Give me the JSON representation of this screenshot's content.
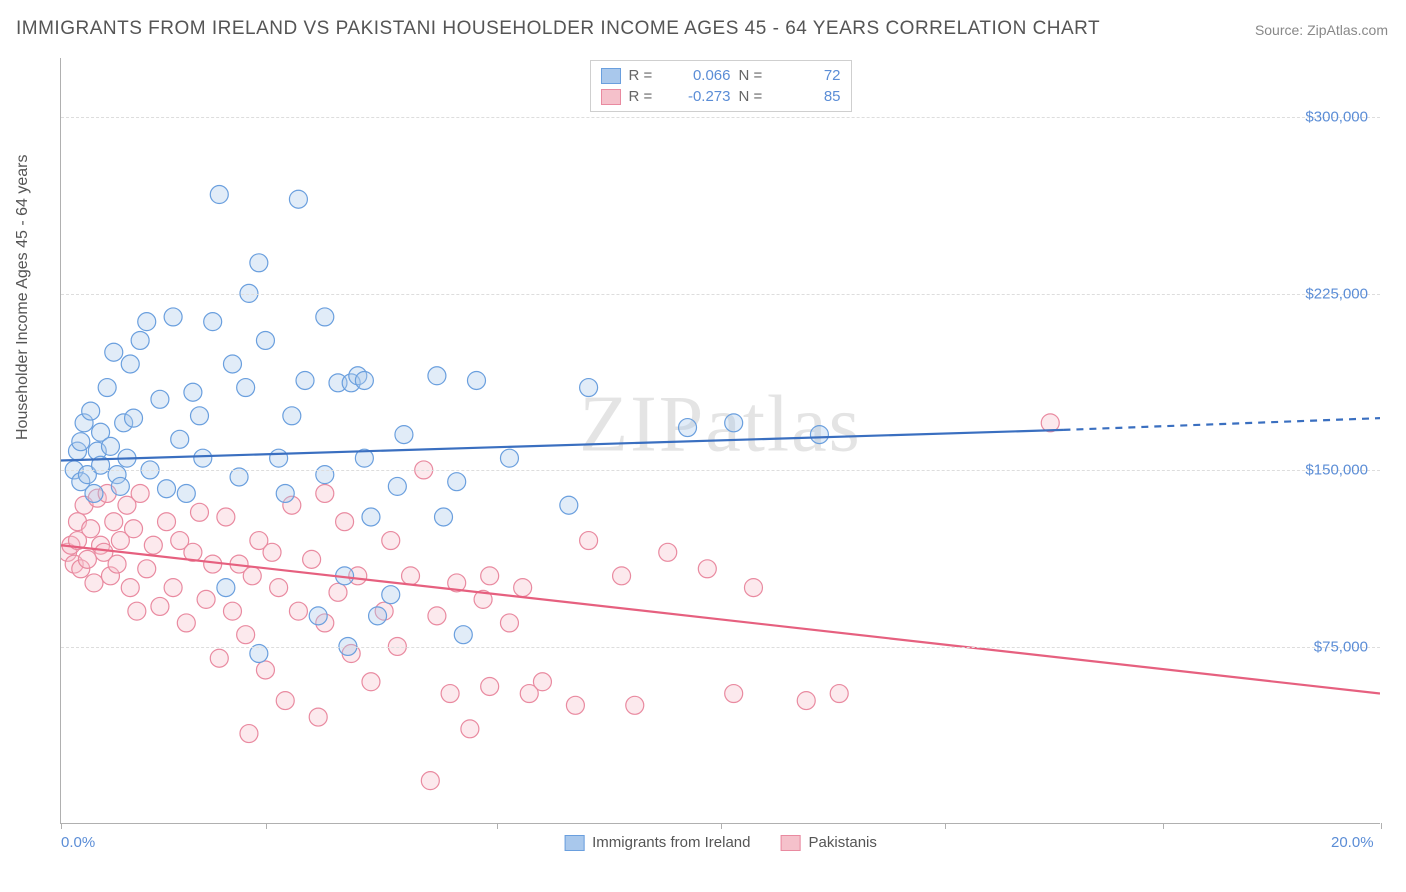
{
  "title": "IMMIGRANTS FROM IRELAND VS PAKISTANI HOUSEHOLDER INCOME AGES 45 - 64 YEARS CORRELATION CHART",
  "source": "Source: ZipAtlas.com",
  "watermark": "ZIPatlas",
  "chart": {
    "type": "scatter",
    "ylabel": "Householder Income Ages 45 - 64 years",
    "background_color": "#ffffff",
    "grid_color": "#dddddd",
    "axis_color": "#b0b0b0",
    "tick_label_color": "#5b8dd6",
    "label_color": "#555555",
    "xlim": [
      0,
      20
    ],
    "ylim": [
      0,
      325000
    ],
    "xtick_positions": [
      0,
      3.1,
      6.6,
      10.0,
      13.4,
      16.7,
      20
    ],
    "xtick_labels_visible": {
      "0": "0.0%",
      "20": "20.0%"
    },
    "ytick_positions": [
      75000,
      150000,
      225000,
      300000
    ],
    "ytick_labels": [
      "$75,000",
      "$150,000",
      "$225,000",
      "$300,000"
    ],
    "marker": {
      "radius": 9,
      "stroke_width": 1.2,
      "fill_opacity": 0.35
    },
    "series": [
      {
        "id": "ireland",
        "label": "Immigrants from Ireland",
        "color_fill": "#a9c8ec",
        "color_stroke": "#6a9fde",
        "trend_color": "#3a6fc0",
        "trend_line_width": 2.2,
        "correlation_R": "0.066",
        "N": "72",
        "trend": {
          "y_at_x0": 154000,
          "y_at_x_solid_end": 167000,
          "x_solid_end": 15.2,
          "y_at_x20": 172000,
          "dashed_after_solid": true
        },
        "points": [
          [
            0.2,
            150000
          ],
          [
            0.25,
            158000
          ],
          [
            0.3,
            145000
          ],
          [
            0.3,
            162000
          ],
          [
            0.35,
            170000
          ],
          [
            0.4,
            148000
          ],
          [
            0.45,
            175000
          ],
          [
            0.5,
            140000
          ],
          [
            0.55,
            158000
          ],
          [
            0.6,
            166000
          ],
          [
            0.6,
            152000
          ],
          [
            0.7,
            185000
          ],
          [
            0.75,
            160000
          ],
          [
            0.8,
            200000
          ],
          [
            0.85,
            148000
          ],
          [
            0.9,
            143000
          ],
          [
            0.95,
            170000
          ],
          [
            1.0,
            155000
          ],
          [
            1.05,
            195000
          ],
          [
            1.1,
            172000
          ],
          [
            1.2,
            205000
          ],
          [
            1.3,
            213000
          ],
          [
            1.35,
            150000
          ],
          [
            1.5,
            180000
          ],
          [
            1.6,
            142000
          ],
          [
            1.7,
            215000
          ],
          [
            1.8,
            163000
          ],
          [
            1.9,
            140000
          ],
          [
            2.0,
            183000
          ],
          [
            2.1,
            173000
          ],
          [
            2.15,
            155000
          ],
          [
            2.3,
            213000
          ],
          [
            2.4,
            267000
          ],
          [
            2.5,
            100000
          ],
          [
            2.6,
            195000
          ],
          [
            2.7,
            147000
          ],
          [
            2.8,
            185000
          ],
          [
            2.85,
            225000
          ],
          [
            3.0,
            72000
          ],
          [
            3.0,
            238000
          ],
          [
            3.1,
            205000
          ],
          [
            3.3,
            155000
          ],
          [
            3.4,
            140000
          ],
          [
            3.5,
            173000
          ],
          [
            3.6,
            265000
          ],
          [
            3.7,
            188000
          ],
          [
            3.9,
            88000
          ],
          [
            4.0,
            148000
          ],
          [
            4.0,
            215000
          ],
          [
            4.2,
            187000
          ],
          [
            4.3,
            105000
          ],
          [
            4.35,
            75000
          ],
          [
            4.4,
            187000
          ],
          [
            4.5,
            190000
          ],
          [
            4.6,
            155000
          ],
          [
            4.6,
            188000
          ],
          [
            4.7,
            130000
          ],
          [
            5.0,
            97000
          ],
          [
            5.1,
            143000
          ],
          [
            5.2,
            165000
          ],
          [
            5.7,
            190000
          ],
          [
            5.8,
            130000
          ],
          [
            6.0,
            145000
          ],
          [
            6.1,
            80000
          ],
          [
            6.3,
            188000
          ],
          [
            6.8,
            155000
          ],
          [
            7.7,
            135000
          ],
          [
            8.0,
            185000
          ],
          [
            9.5,
            168000
          ],
          [
            10.2,
            170000
          ],
          [
            11.5,
            165000
          ],
          [
            4.8,
            88000
          ]
        ]
      },
      {
        "id": "pakistani",
        "label": "Pakistanis",
        "color_fill": "#f5c1cb",
        "color_stroke": "#e98aa0",
        "trend_color": "#e6607f",
        "trend_line_width": 2.2,
        "correlation_R": "-0.273",
        "N": "85",
        "trend": {
          "y_at_x0": 118000,
          "y_at_x_solid_end": 55000,
          "x_solid_end": 20,
          "y_at_x20": 55000,
          "dashed_after_solid": false
        },
        "points": [
          [
            0.1,
            115000
          ],
          [
            0.15,
            118000
          ],
          [
            0.2,
            110000
          ],
          [
            0.25,
            120000
          ],
          [
            0.25,
            128000
          ],
          [
            0.3,
            108000
          ],
          [
            0.35,
            135000
          ],
          [
            0.4,
            112000
          ],
          [
            0.45,
            125000
          ],
          [
            0.5,
            102000
          ],
          [
            0.55,
            138000
          ],
          [
            0.6,
            118000
          ],
          [
            0.65,
            115000
          ],
          [
            0.7,
            140000
          ],
          [
            0.75,
            105000
          ],
          [
            0.8,
            128000
          ],
          [
            0.85,
            110000
          ],
          [
            0.9,
            120000
          ],
          [
            1.0,
            135000
          ],
          [
            1.05,
            100000
          ],
          [
            1.1,
            125000
          ],
          [
            1.2,
            140000
          ],
          [
            1.3,
            108000
          ],
          [
            1.4,
            118000
          ],
          [
            1.5,
            92000
          ],
          [
            1.6,
            128000
          ],
          [
            1.7,
            100000
          ],
          [
            1.8,
            120000
          ],
          [
            1.9,
            85000
          ],
          [
            2.0,
            115000
          ],
          [
            2.1,
            132000
          ],
          [
            2.2,
            95000
          ],
          [
            2.3,
            110000
          ],
          [
            2.4,
            70000
          ],
          [
            2.5,
            130000
          ],
          [
            2.6,
            90000
          ],
          [
            2.7,
            110000
          ],
          [
            2.8,
            80000
          ],
          [
            2.85,
            38000
          ],
          [
            2.9,
            105000
          ],
          [
            3.0,
            120000
          ],
          [
            3.1,
            65000
          ],
          [
            3.3,
            100000
          ],
          [
            3.4,
            52000
          ],
          [
            3.5,
            135000
          ],
          [
            3.6,
            90000
          ],
          [
            3.8,
            112000
          ],
          [
            3.9,
            45000
          ],
          [
            4.0,
            85000
          ],
          [
            4.0,
            140000
          ],
          [
            4.2,
            98000
          ],
          [
            4.3,
            128000
          ],
          [
            4.4,
            72000
          ],
          [
            4.5,
            105000
          ],
          [
            4.7,
            60000
          ],
          [
            4.9,
            90000
          ],
          [
            5.0,
            120000
          ],
          [
            5.1,
            75000
          ],
          [
            5.3,
            105000
          ],
          [
            5.5,
            150000
          ],
          [
            5.6,
            18000
          ],
          [
            5.7,
            88000
          ],
          [
            5.9,
            55000
          ],
          [
            6.0,
            102000
          ],
          [
            6.2,
            40000
          ],
          [
            6.4,
            95000
          ],
          [
            6.5,
            105000
          ],
          [
            6.5,
            58000
          ],
          [
            7.0,
            100000
          ],
          [
            7.1,
            55000
          ],
          [
            7.3,
            60000
          ],
          [
            7.8,
            50000
          ],
          [
            8.0,
            120000
          ],
          [
            8.5,
            105000
          ],
          [
            8.7,
            50000
          ],
          [
            9.2,
            115000
          ],
          [
            9.8,
            108000
          ],
          [
            10.2,
            55000
          ],
          [
            10.5,
            100000
          ],
          [
            11.3,
            52000
          ],
          [
            11.8,
            55000
          ],
          [
            15.0,
            170000
          ],
          [
            6.8,
            85000
          ],
          [
            3.2,
            115000
          ],
          [
            1.15,
            90000
          ]
        ]
      }
    ],
    "legend_top": {
      "R_label": "R  =",
      "N_label": "N  ="
    },
    "legend_bottom_labels": [
      "Immigrants from Ireland",
      "Pakistanis"
    ]
  }
}
